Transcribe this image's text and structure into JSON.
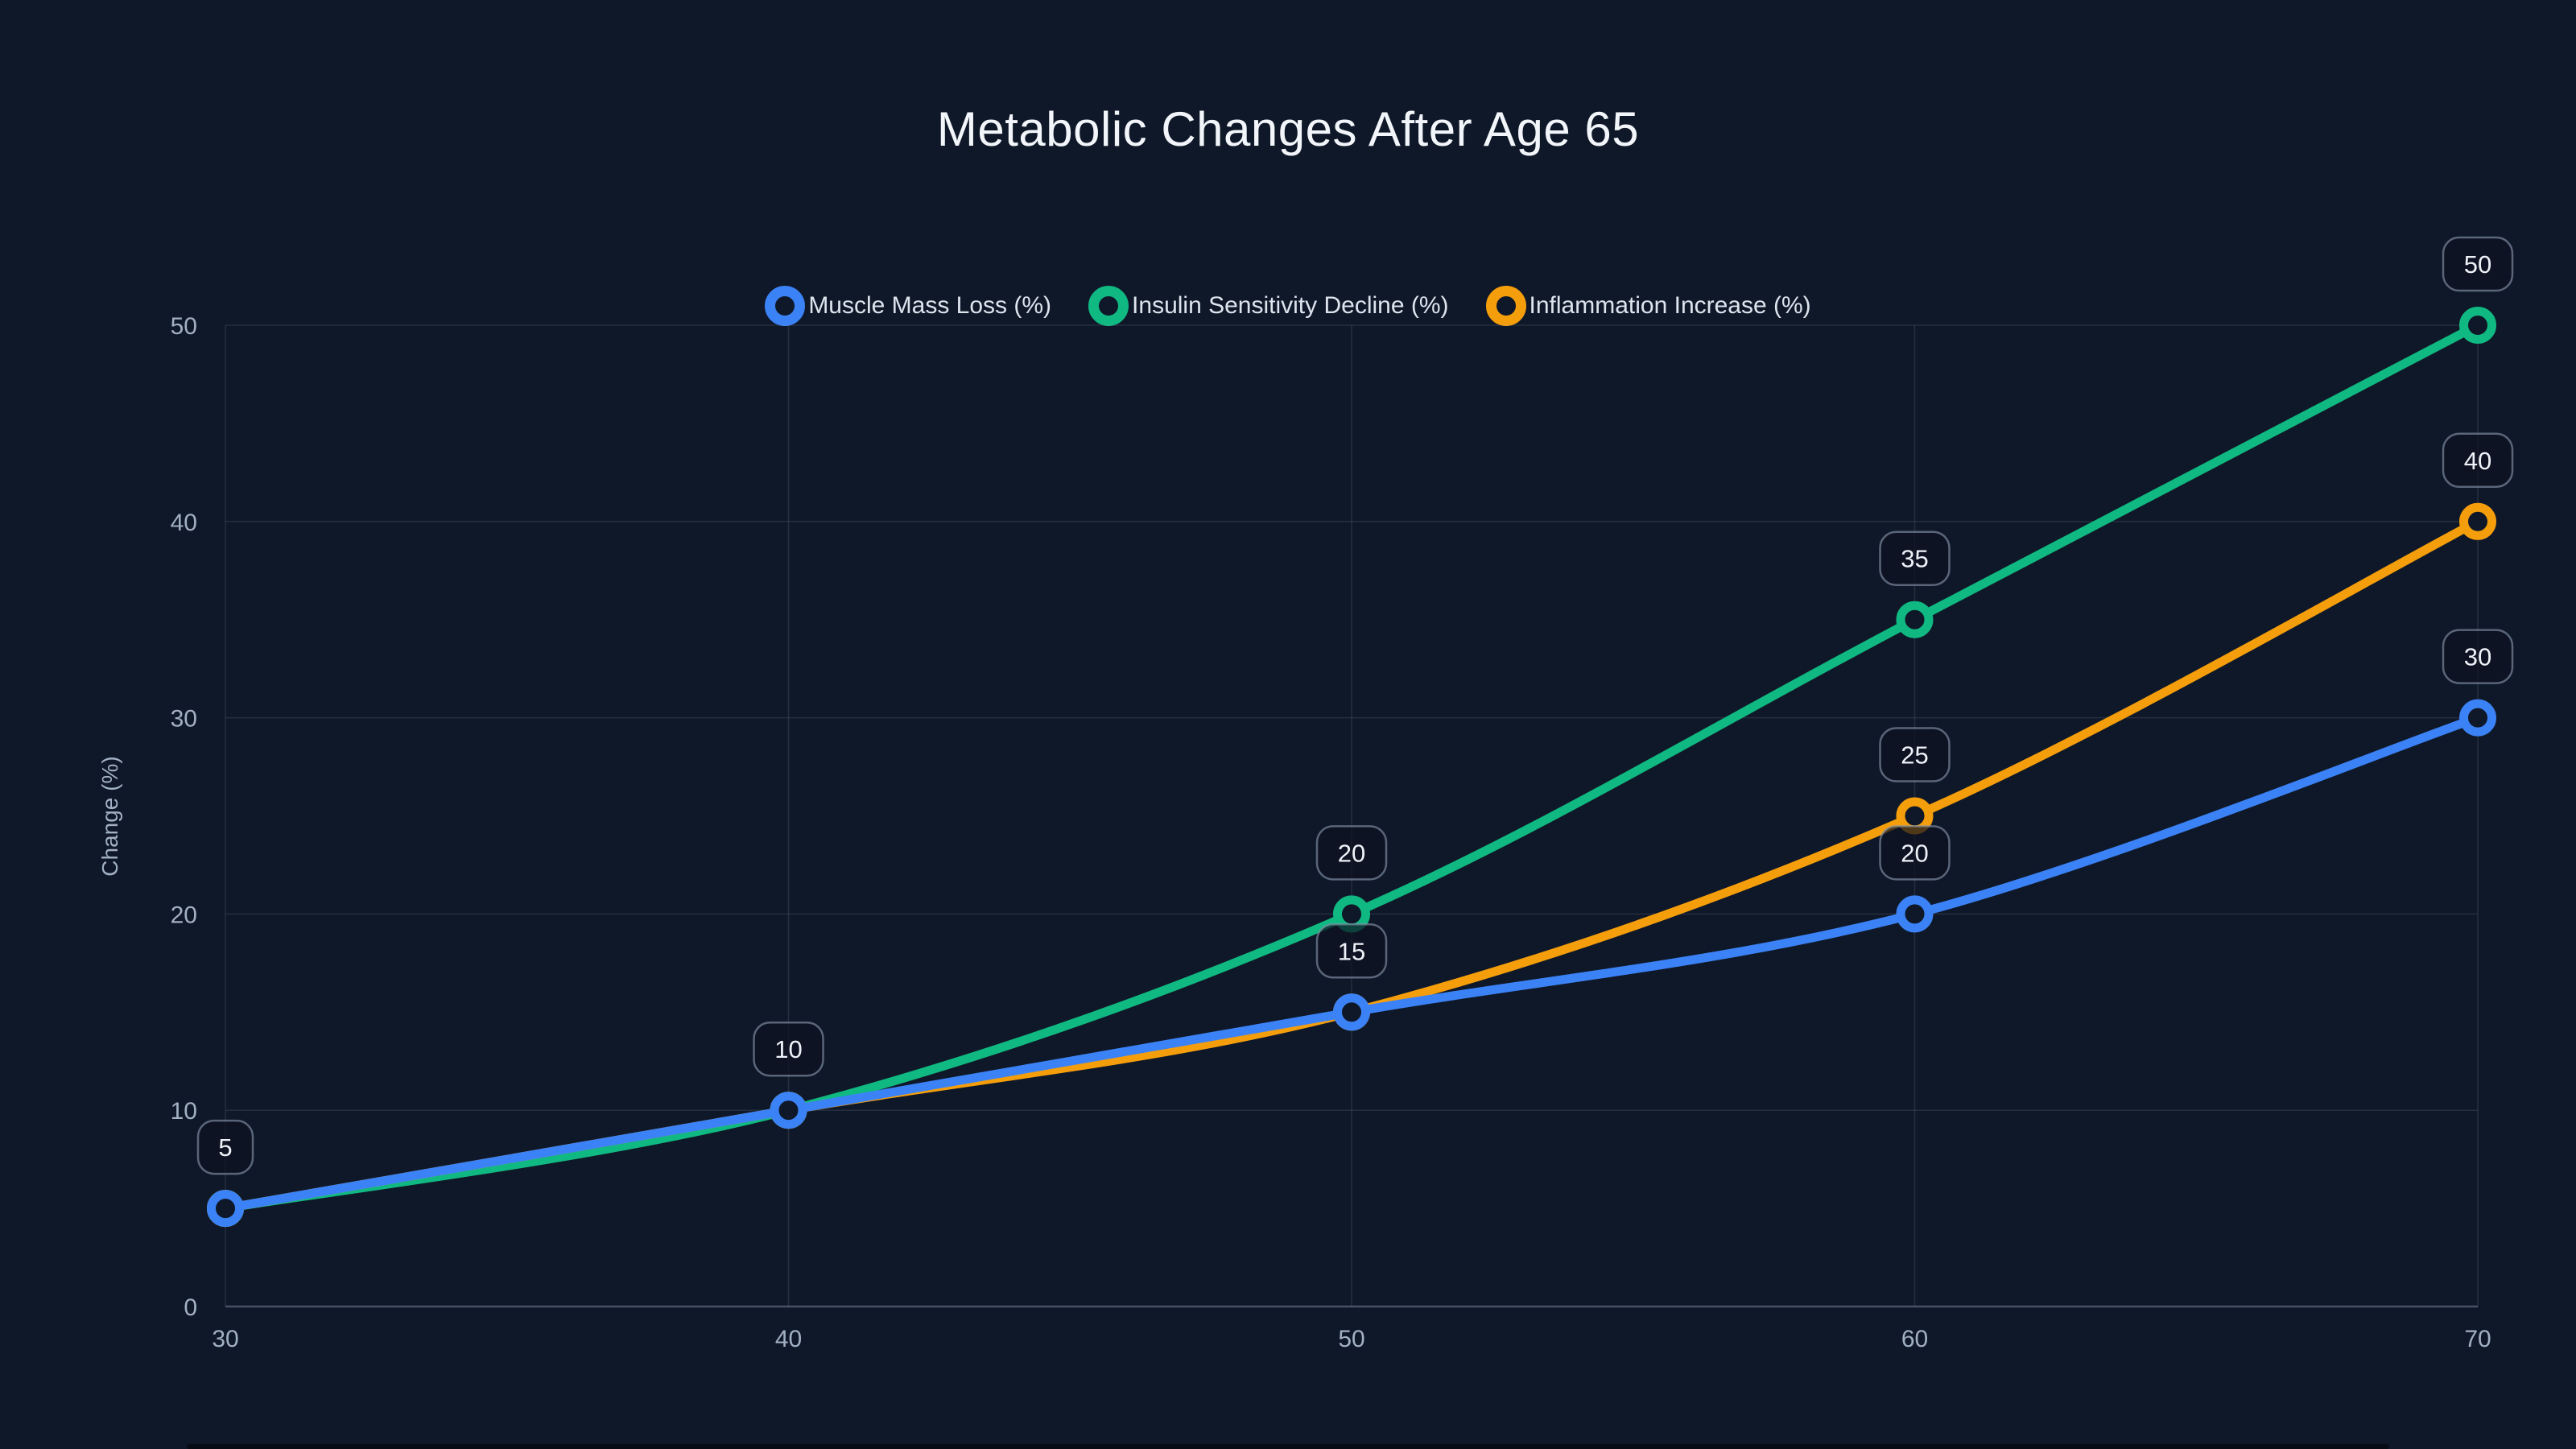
{
  "page": {
    "background": "#0f1828",
    "title": "Metabolic Changes After Age 65"
  },
  "colors": {
    "title_text": "#f2f6fa",
    "axis_text": "#a2b0c4",
    "grid": "rgba(148,163,184,0.16)",
    "axis_line": "rgba(148,163,184,0.42)",
    "legend_text": "#dde4ee",
    "badge_fill": "rgba(12,18,32,0.72)",
    "badge_border": "rgba(130,145,168,0.65)",
    "badge_text": "#eef2f8",
    "marker_hole": "#0f1828"
  },
  "chart_data": {
    "type": "line",
    "title": "Metabolic Changes After Age 65",
    "xlabel": "",
    "ylabel": "Change (%)",
    "x": [
      30,
      40,
      50,
      60,
      70
    ],
    "xlim": [
      30,
      70
    ],
    "ylim": [
      0,
      50
    ],
    "x_ticks": [
      "30",
      "40",
      "50",
      "60",
      "70"
    ],
    "y_ticks": [
      "0",
      "10",
      "20",
      "30",
      "40",
      "50"
    ],
    "grid": true,
    "curve": "smooth",
    "legend_position": "top-center",
    "series": [
      {
        "name": "Muscle Mass Loss (%)",
        "color": "#3b82f6",
        "values": [
          5,
          10,
          15,
          20,
          30
        ]
      },
      {
        "name": "Insulin Sensitivity Decline (%)",
        "color": "#10b981",
        "values": [
          5,
          10,
          20,
          35,
          50
        ]
      },
      {
        "name": "Inflammation Increase (%)",
        "color": "#f59e0b",
        "values": [
          5,
          10,
          15,
          25,
          40
        ]
      }
    ],
    "point_labels": [
      {
        "x": 30,
        "value": "5"
      },
      {
        "x": 40,
        "value": "10"
      },
      {
        "x": 50,
        "value": "20"
      },
      {
        "x": 50,
        "value": "15"
      },
      {
        "x": 60,
        "value": "35"
      },
      {
        "x": 60,
        "value": "25"
      },
      {
        "x": 60,
        "value": "20"
      },
      {
        "x": 70,
        "value": "50"
      },
      {
        "x": 70,
        "value": "40"
      },
      {
        "x": 70,
        "value": "30"
      }
    ]
  }
}
